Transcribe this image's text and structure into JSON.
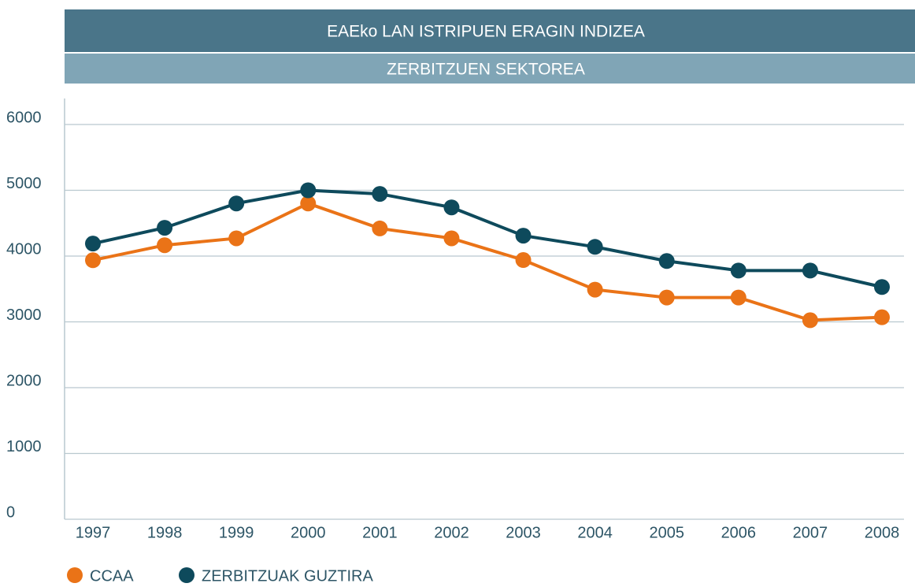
{
  "chart_data": {
    "type": "line",
    "title": "EAEko LAN ISTRIPUEN ERAGIN INDIZEA",
    "subtitle": "ZERBITZUEN SEKTOREA",
    "categories": [
      "1997",
      "1998",
      "1999",
      "2000",
      "2001",
      "2002",
      "2003",
      "2004",
      "2005",
      "2006",
      "2007",
      "2008"
    ],
    "series": [
      {
        "name": "CCAA",
        "color": "#ea7317",
        "values": [
          3937,
          4165,
          4270,
          4800,
          4420,
          4270,
          3940,
          3490,
          3370,
          3370,
          3025,
          3070
        ]
      },
      {
        "name": "ZERBITZUAK GUZTIRA",
        "color": "#0e4a5c",
        "values": [
          4190,
          4430,
          4800,
          5000,
          4945,
          4740,
          4310,
          4140,
          3925,
          3780,
          3780,
          3530
        ]
      }
    ],
    "ylim": [
      0,
      6000
    ],
    "yticks": [
      0,
      1000,
      2000,
      3000,
      4000,
      5000,
      6000
    ],
    "grid": true,
    "legend": "bottom-left"
  }
}
